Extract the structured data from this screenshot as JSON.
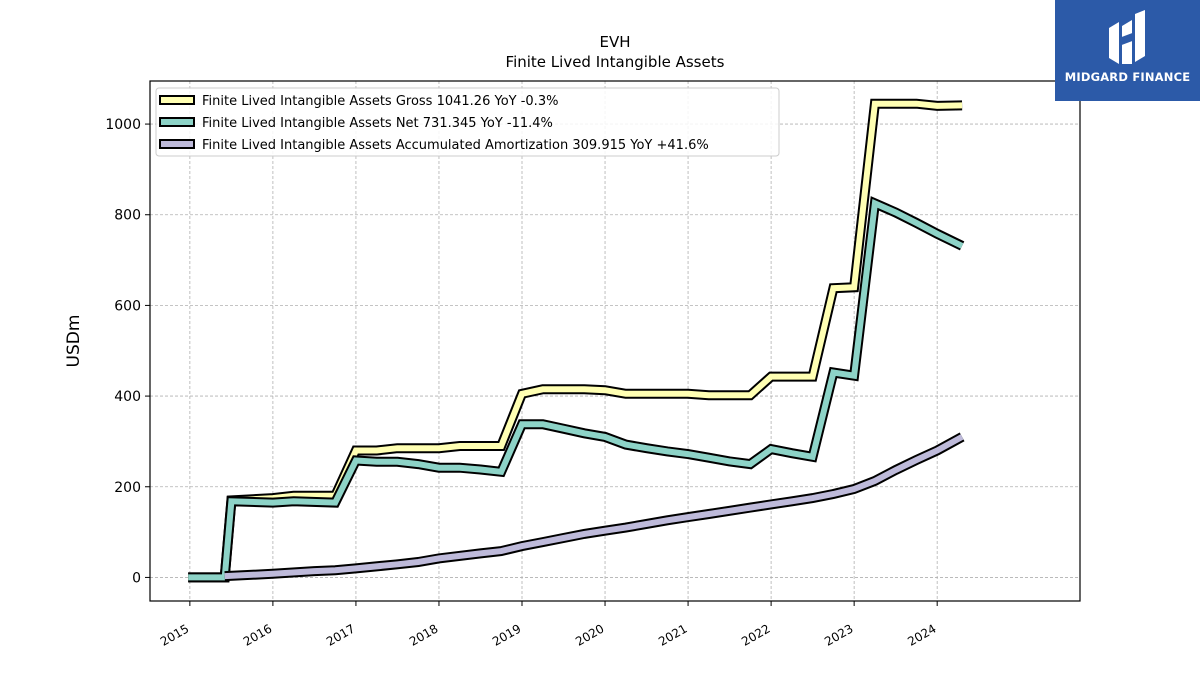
{
  "brand": {
    "name": "MIDGARD FINANCE",
    "bg_color": "#2c5aa8"
  },
  "chart_data": {
    "type": "line",
    "title": "EVH",
    "subtitle": "Finite Lived Intangible Assets",
    "xlabel": "",
    "ylabel": "USDm",
    "xlim": [
      2014.52,
      2025.72
    ],
    "ylim": [
      -52,
      1095
    ],
    "yticks": [
      0,
      200,
      400,
      600,
      800,
      1000
    ],
    "xticks": [
      2015,
      2016,
      2017,
      2018,
      2019,
      2020,
      2021,
      2022,
      2023,
      2024
    ],
    "grid": true,
    "legend_position": "top-left",
    "series": [
      {
        "name": "Finite Lived Intangible Assets Gross",
        "legend_label": "Finite Lived Intangible Assets Gross  1041.26 YoY -0.3%",
        "color": "#ffffb3",
        "x": [
          2014.98,
          2015.42,
          2015.5,
          2016.0,
          2016.25,
          2016.75,
          2017.0,
          2017.25,
          2017.5,
          2017.75,
          2018.0,
          2018.25,
          2018.5,
          2018.75,
          2019.0,
          2019.25,
          2019.5,
          2019.75,
          2020.0,
          2020.25,
          2020.5,
          2020.75,
          2021.0,
          2021.25,
          2021.5,
          2021.75,
          2022.0,
          2022.25,
          2022.5,
          2022.75,
          2023.0,
          2023.25,
          2023.5,
          2023.75,
          2024.0,
          2024.3
        ],
        "values": [
          0,
          0,
          170,
          175,
          180,
          180,
          280,
          280,
          285,
          285,
          285,
          290,
          290,
          290,
          405,
          415,
          415,
          415,
          413,
          405,
          405,
          405,
          405,
          402,
          402,
          402,
          443,
          443,
          443,
          638,
          640,
          1045,
          1045,
          1045,
          1040,
          1041.26
        ]
      },
      {
        "name": "Finite Lived Intangible Assets Net",
        "legend_label": "Finite Lived Intangible Assets Net  731.345 YoY -11.4%",
        "color": "#8dd3c7",
        "x": [
          2014.98,
          2015.42,
          2015.5,
          2016.0,
          2016.25,
          2016.75,
          2017.0,
          2017.25,
          2017.5,
          2017.75,
          2018.0,
          2018.25,
          2018.5,
          2018.75,
          2019.0,
          2019.25,
          2019.5,
          2019.75,
          2020.0,
          2020.25,
          2020.5,
          2020.75,
          2021.0,
          2021.25,
          2021.5,
          2021.75,
          2022.0,
          2022.25,
          2022.5,
          2022.75,
          2023.0,
          2023.25,
          2023.5,
          2023.75,
          2024.0,
          2024.3
        ],
        "values": [
          0,
          0,
          168,
          165,
          168,
          165,
          258,
          255,
          255,
          250,
          242,
          242,
          238,
          233,
          338,
          338,
          328,
          318,
          310,
          293,
          285,
          278,
          272,
          264,
          256,
          250,
          283,
          274,
          266,
          452,
          445,
          825,
          805,
          782,
          758,
          731.345
        ]
      },
      {
        "name": "Finite Lived Intangible Assets Accumulated Amortization",
        "legend_label": "Finite Lived Intangible Assets Accumulated Amortization  309.915 YoY +41.6%",
        "color": "#bebada",
        "x": [
          2015.42,
          2016.0,
          2016.5,
          2016.75,
          2017.0,
          2017.5,
          2017.75,
          2018.0,
          2018.5,
          2018.75,
          2019.0,
          2019.25,
          2019.5,
          2019.75,
          2020.0,
          2020.25,
          2020.5,
          2020.75,
          2021.0,
          2021.25,
          2021.5,
          2021.75,
          2022.0,
          2022.25,
          2022.5,
          2022.75,
          2023.0,
          2023.25,
          2023.5,
          2023.75,
          2024.0,
          2024.3
        ],
        "values": [
          3,
          8,
          14,
          16,
          20,
          29,
          34,
          42,
          53,
          58,
          69,
          78,
          87,
          96,
          103,
          110,
          118,
          126,
          133,
          140,
          147,
          154,
          161,
          168,
          175,
          184,
          195,
          213,
          237,
          259,
          280,
          309.915
        ]
      }
    ]
  }
}
